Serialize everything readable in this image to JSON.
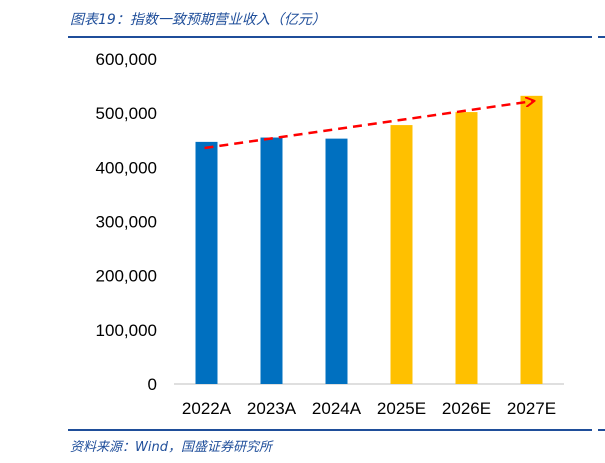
{
  "title": "图表19：指数一致预期营业收入（亿元）",
  "source": "资料来源：Wind，国盛证券研究所",
  "chart_data": {
    "type": "bar",
    "title": "指数一致预期营业收入（亿元）",
    "categories": [
      "2022A",
      "2023A",
      "2024A",
      "2025E",
      "2026E",
      "2027E"
    ],
    "values": [
      447000,
      455000,
      453000,
      478000,
      502000,
      532000
    ],
    "colors": [
      "#0070c0",
      "#0070c0",
      "#0070c0",
      "#ffc000",
      "#ffc000",
      "#ffc000"
    ],
    "ylim": [
      0,
      600000
    ],
    "yticks": [
      0,
      100000,
      200000,
      300000,
      400000,
      500000,
      600000
    ],
    "ytick_labels": [
      "0",
      "100,000",
      "200,000",
      "300,000",
      "400,000",
      "500,000",
      "600,000"
    ],
    "annotation": "trend-arrow",
    "arrow_color": "#ff0000",
    "grid": false
  }
}
